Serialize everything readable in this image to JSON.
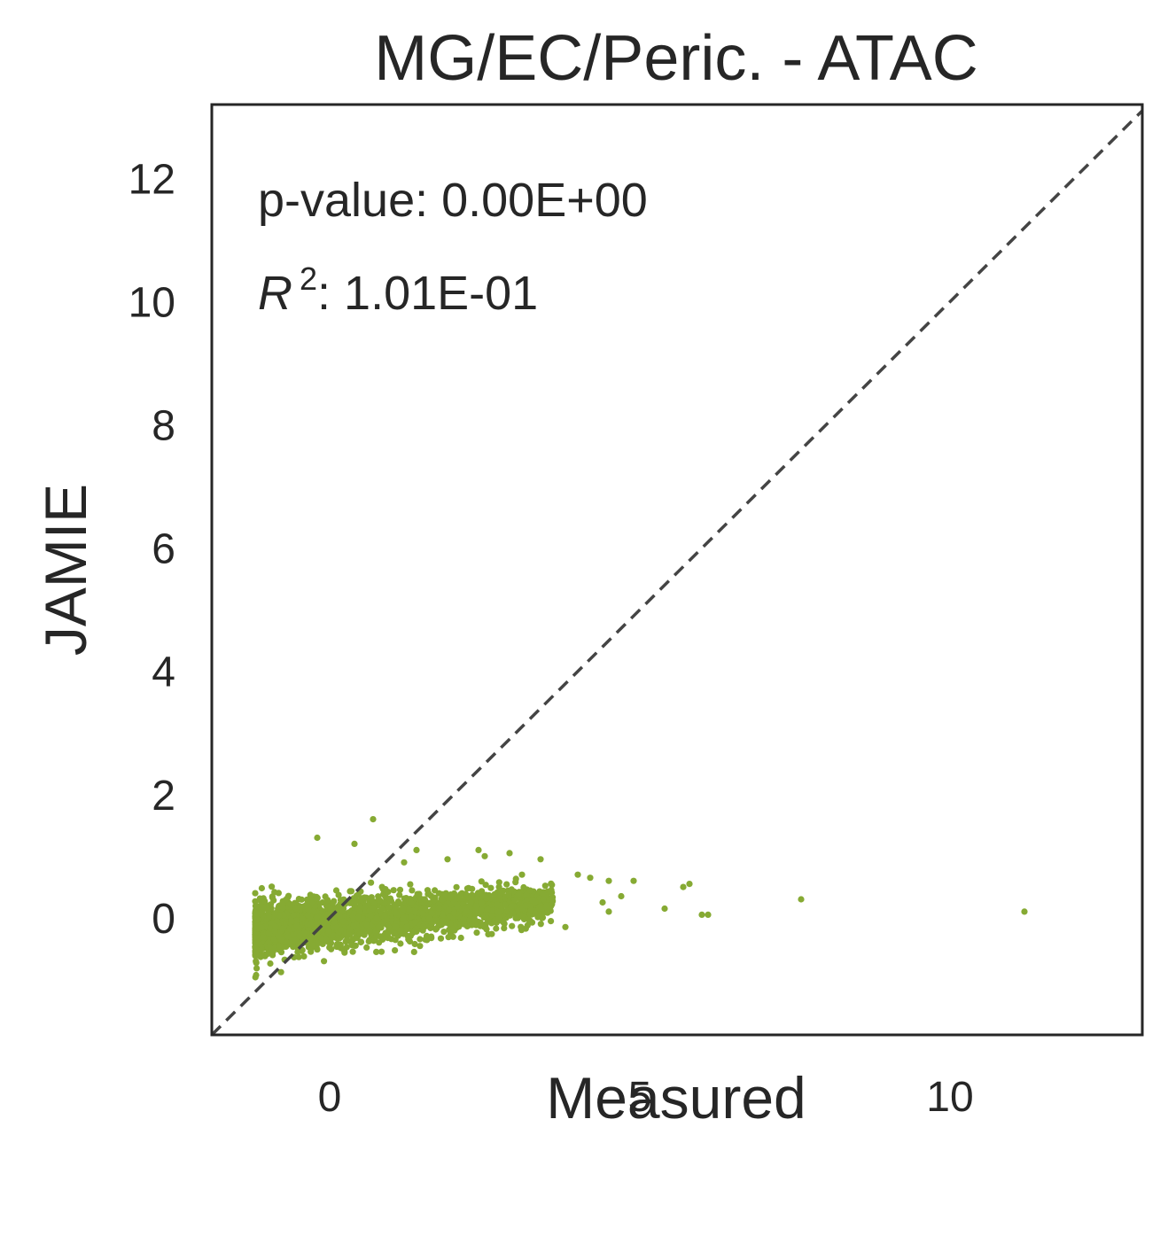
{
  "chart_data": {
    "type": "scatter",
    "title": "MG/EC/Peric. - ATAC",
    "xlabel": "Measured",
    "ylabel": "JAMIE",
    "xlim": [
      -1.9,
      13.1
    ],
    "ylim": [
      -1.9,
      13.2
    ],
    "xticks": [
      0,
      5,
      10
    ],
    "yticks": [
      0,
      2,
      4,
      6,
      8,
      10,
      12
    ],
    "grid": false,
    "reference_line": {
      "style": "dashed",
      "from": [
        -1.9,
        -1.9
      ],
      "to": [
        13.1,
        13.1
      ],
      "color": "#444444"
    },
    "annotations": {
      "pvalue": "p-value: 0.00E+00",
      "r2_symbol": "R",
      "r2_exponent": "2",
      "r2_value": ": 1.01E-01"
    },
    "point_color": "#86aa33",
    "series": [
      {
        "cluster": {
          "x_min": -1.2,
          "x_max": 3.6,
          "y_center_at_xmin": -0.2,
          "y_center_at_xmax": 0.25,
          "spread": 0.22,
          "count": 2600
        },
        "points": [
          {
            "x": 0.7,
            "y": 1.6
          },
          {
            "x": -0.2,
            "y": 1.3
          },
          {
            "x": 0.4,
            "y": 1.2
          },
          {
            "x": 1.4,
            "y": 1.1
          },
          {
            "x": 2.4,
            "y": 1.1
          },
          {
            "x": 2.9,
            "y": 1.05
          },
          {
            "x": 2.5,
            "y": 1.0
          },
          {
            "x": 1.2,
            "y": 0.9
          },
          {
            "x": 1.9,
            "y": 0.95
          },
          {
            "x": 3.4,
            "y": 0.95
          },
          {
            "x": 3.1,
            "y": 0.7
          },
          {
            "x": 4.0,
            "y": 0.7
          },
          {
            "x": 4.2,
            "y": 0.65
          },
          {
            "x": 4.5,
            "y": 0.6
          },
          {
            "x": 4.9,
            "y": 0.6
          },
          {
            "x": 5.8,
            "y": 0.55
          },
          {
            "x": 5.7,
            "y": 0.5
          },
          {
            "x": 4.7,
            "y": 0.35
          },
          {
            "x": 4.4,
            "y": 0.25
          },
          {
            "x": 5.4,
            "y": 0.15
          },
          {
            "x": 4.5,
            "y": 0.1
          },
          {
            "x": 6.0,
            "y": 0.05
          },
          {
            "x": 6.1,
            "y": 0.05
          },
          {
            "x": 7.6,
            "y": 0.3
          },
          {
            "x": 11.2,
            "y": 0.1
          },
          {
            "x": 3.8,
            "y": -0.15
          },
          {
            "x": 3.5,
            "y": 0.2
          }
        ]
      }
    ]
  }
}
